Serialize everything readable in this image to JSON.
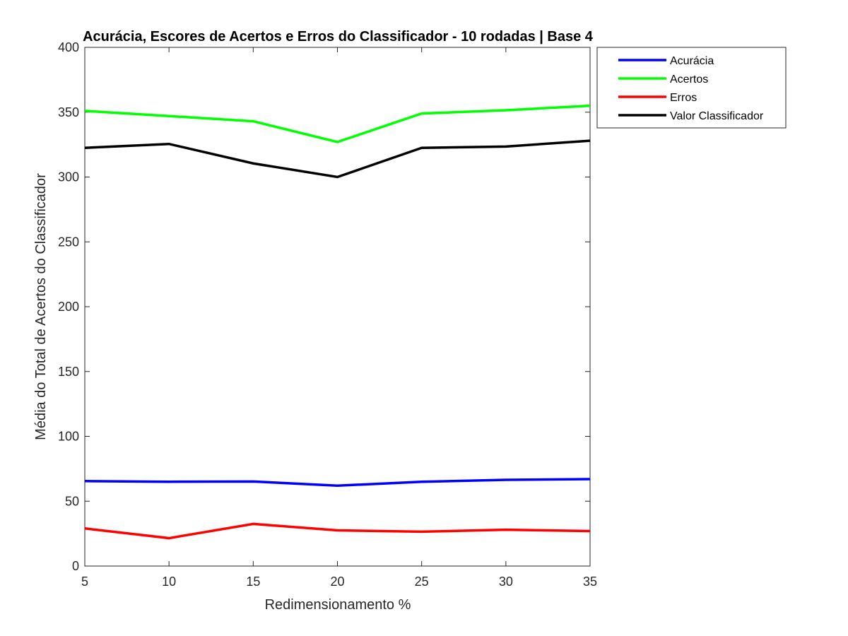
{
  "chart_data": {
    "type": "line",
    "title": "Acurácia, Escores de Acertos e Erros do Classificador - 10 rodadas | Base 4",
    "xlabel": "Redimensionamento %",
    "ylabel": "Média do Total de Acertos do Classificador",
    "x": [
      5,
      10,
      15,
      20,
      25,
      30,
      35
    ],
    "xlim": [
      5,
      35
    ],
    "ylim": [
      0,
      400
    ],
    "xticks": [
      "5",
      "10",
      "15",
      "20",
      "25",
      "30",
      "35"
    ],
    "yticks": [
      "0",
      "50",
      "100",
      "150",
      "200",
      "250",
      "300",
      "350",
      "400"
    ],
    "grid": false,
    "legend_position": "outside-top-right",
    "series": [
      {
        "name": "Acurácia",
        "color": "#0000ff",
        "values": [
          65.5,
          65.0,
          65.2,
          62.0,
          65.0,
          66.5,
          67.0
        ]
      },
      {
        "name": "Acertos",
        "color": "#00ff00",
        "values": [
          351,
          347,
          343,
          327,
          349,
          351.5,
          355
        ]
      },
      {
        "name": "Erros",
        "color": "#ff0000",
        "values": [
          29,
          21.5,
          32.5,
          27.5,
          26.5,
          28,
          27
        ]
      },
      {
        "name": "Valor Classificador",
        "color": "#000000",
        "values": [
          322.5,
          325.5,
          310.5,
          300,
          322.5,
          323.5,
          328
        ]
      }
    ]
  }
}
